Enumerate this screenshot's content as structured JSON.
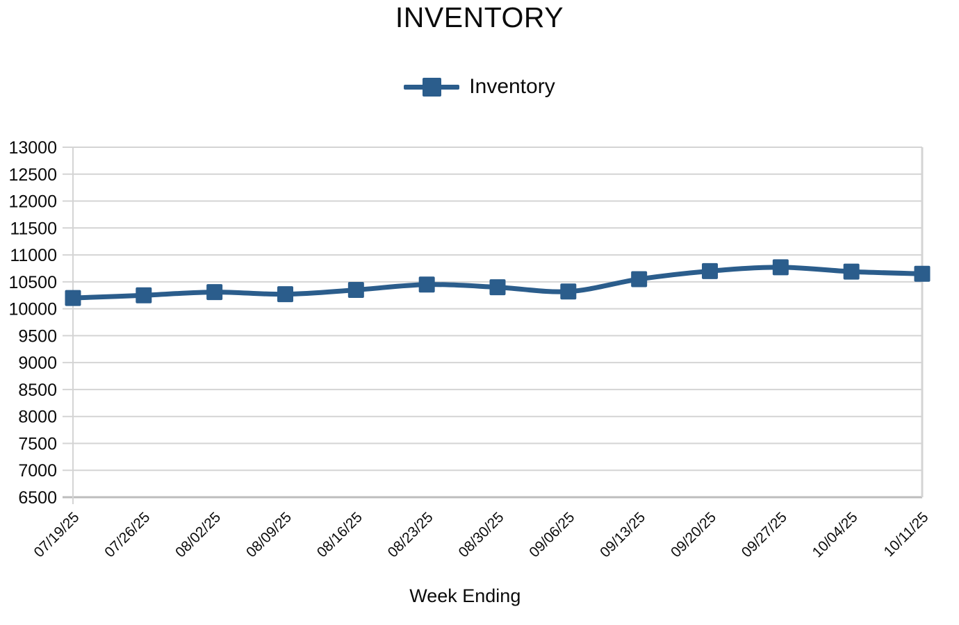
{
  "chart_data": {
    "type": "line",
    "title": "INVENTORY",
    "xlabel": "Week Ending",
    "ylabel": "",
    "categories": [
      "07/19/25",
      "07/26/25",
      "08/02/25",
      "08/09/25",
      "08/16/25",
      "08/23/25",
      "08/30/25",
      "09/06/25",
      "09/13/25",
      "09/20/25",
      "09/27/25",
      "10/04/25",
      "10/11/25"
    ],
    "series": [
      {
        "name": "Inventory",
        "values": [
          10200,
          10250,
          10310,
          10270,
          10350,
          10450,
          10400,
          10320,
          10550,
          10700,
          10770,
          10690,
          10650
        ]
      }
    ],
    "ylim": [
      6500,
      13000
    ],
    "ytick_step": 500,
    "legend_position": "top",
    "grid": "horizontal",
    "marker": "square",
    "colors": {
      "series": "#2b5d8c",
      "gridline": "#d4d4d4",
      "axis_line": "#bdbdbd",
      "text": "#0b0b0b"
    }
  }
}
